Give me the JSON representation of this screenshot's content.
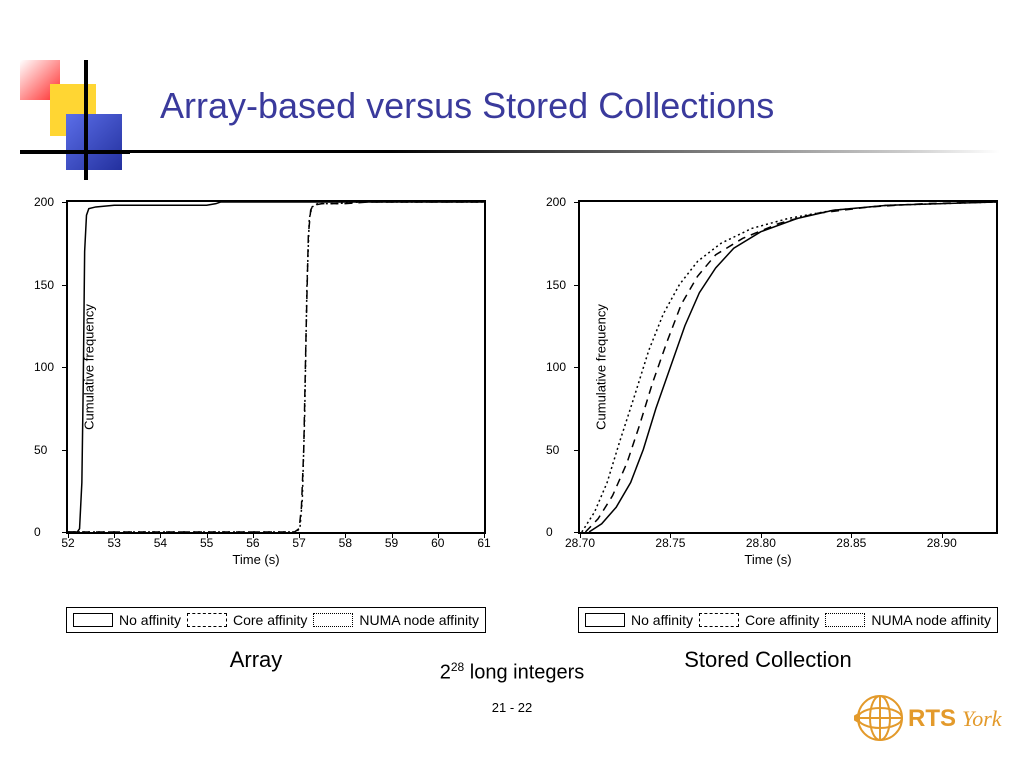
{
  "title": "Array-based versus Stored Collections",
  "title_color": "#3a3a9c",
  "title_fontsize": 36,
  "background_color": "#ffffff",
  "corner_deco": {
    "red": "#ff3b3b",
    "yellow": "#ffd633",
    "blue": "#2e3fbf"
  },
  "left_chart": {
    "type": "line",
    "caption": "Array",
    "xlabel": "Time (s)",
    "ylabel": "Cumulative frequency",
    "label_fontsize": 13,
    "xlim": [
      52,
      61
    ],
    "ylim": [
      0,
      200
    ],
    "xticks": [
      52,
      53,
      54,
      55,
      56,
      57,
      58,
      59,
      60,
      61
    ],
    "yticks": [
      0,
      50,
      100,
      150,
      200
    ],
    "line_color": "#000000",
    "line_width": 1.5,
    "series": {
      "no_affinity": {
        "dash": "none",
        "points": [
          [
            52.0,
            0
          ],
          [
            52.2,
            0
          ],
          [
            52.25,
            2
          ],
          [
            52.3,
            30
          ],
          [
            52.33,
            90
          ],
          [
            52.36,
            170
          ],
          [
            52.4,
            192
          ],
          [
            52.45,
            196
          ],
          [
            52.6,
            197
          ],
          [
            53.0,
            198
          ],
          [
            53.5,
            198
          ],
          [
            54.5,
            198
          ],
          [
            55.0,
            198
          ],
          [
            55.2,
            199
          ],
          [
            55.3,
            200
          ],
          [
            56.0,
            200
          ],
          [
            57.0,
            200
          ],
          [
            58.0,
            200
          ],
          [
            61.0,
            200
          ]
        ]
      },
      "core_affinity": {
        "dash": "8 6",
        "points": [
          [
            52.0,
            0
          ],
          [
            56.8,
            0
          ],
          [
            56.9,
            0
          ],
          [
            57.0,
            2
          ],
          [
            57.05,
            15
          ],
          [
            57.1,
            50
          ],
          [
            57.15,
            120
          ],
          [
            57.2,
            180
          ],
          [
            57.25,
            195
          ],
          [
            57.3,
            198
          ],
          [
            57.5,
            199
          ],
          [
            58.0,
            199
          ],
          [
            58.5,
            200
          ],
          [
            61.0,
            200
          ]
        ]
      },
      "numa_affinity": {
        "dash": "2 3",
        "points": [
          [
            52.0,
            0
          ],
          [
            56.85,
            0
          ],
          [
            56.95,
            0
          ],
          [
            57.02,
            3
          ],
          [
            57.07,
            20
          ],
          [
            57.12,
            70
          ],
          [
            57.17,
            150
          ],
          [
            57.22,
            190
          ],
          [
            57.28,
            197
          ],
          [
            57.4,
            199
          ],
          [
            57.8,
            199
          ],
          [
            58.3,
            200
          ],
          [
            61.0,
            200
          ]
        ]
      }
    }
  },
  "right_chart": {
    "type": "line",
    "caption": "Stored Collection",
    "xlabel": "Time (s)",
    "ylabel": "Cumulative frequency",
    "label_fontsize": 13,
    "xlim": [
      28.7,
      28.93
    ],
    "ylim": [
      0,
      200
    ],
    "xticks": [
      28.7,
      28.75,
      28.8,
      28.85,
      28.9
    ],
    "yticks": [
      0,
      50,
      100,
      150,
      200
    ],
    "line_color": "#000000",
    "line_width": 1.5,
    "series": {
      "no_affinity": {
        "dash": "none",
        "points": [
          [
            28.705,
            0
          ],
          [
            28.712,
            5
          ],
          [
            28.72,
            15
          ],
          [
            28.728,
            30
          ],
          [
            28.735,
            50
          ],
          [
            28.742,
            75
          ],
          [
            28.75,
            100
          ],
          [
            28.758,
            125
          ],
          [
            28.766,
            145
          ],
          [
            28.775,
            160
          ],
          [
            28.785,
            172
          ],
          [
            28.8,
            182
          ],
          [
            28.82,
            190
          ],
          [
            28.84,
            195
          ],
          [
            28.87,
            198
          ],
          [
            28.9,
            199
          ],
          [
            28.93,
            200
          ]
        ]
      },
      "core_affinity": {
        "dash": "8 6",
        "points": [
          [
            28.703,
            0
          ],
          [
            28.71,
            8
          ],
          [
            28.718,
            22
          ],
          [
            28.726,
            42
          ],
          [
            28.733,
            65
          ],
          [
            28.74,
            90
          ],
          [
            28.748,
            115
          ],
          [
            28.756,
            138
          ],
          [
            28.765,
            155
          ],
          [
            28.775,
            168
          ],
          [
            28.79,
            178
          ],
          [
            28.81,
            187
          ],
          [
            28.83,
            193
          ],
          [
            28.86,
            197
          ],
          [
            28.89,
            199
          ],
          [
            28.93,
            200
          ]
        ]
      },
      "numa_affinity": {
        "dash": "2 3",
        "points": [
          [
            28.701,
            0
          ],
          [
            28.708,
            12
          ],
          [
            28.715,
            30
          ],
          [
            28.722,
            55
          ],
          [
            28.73,
            82
          ],
          [
            28.738,
            110
          ],
          [
            28.746,
            132
          ],
          [
            28.755,
            150
          ],
          [
            28.765,
            164
          ],
          [
            28.778,
            175
          ],
          [
            28.795,
            184
          ],
          [
            28.815,
            190
          ],
          [
            28.84,
            195
          ],
          [
            28.87,
            198
          ],
          [
            28.9,
            199
          ],
          [
            28.93,
            200
          ]
        ]
      }
    }
  },
  "legend": {
    "items": [
      {
        "label": "No affinity",
        "dash": "none"
      },
      {
        "label": "Core affinity",
        "dash": "dashed"
      },
      {
        "label": "NUMA node affinity",
        "dash": "dotted"
      }
    ]
  },
  "footnote_prefix_base": "2",
  "footnote_exponent": "28",
  "footnote_suffix": " long integers",
  "page_number": "21 - 22",
  "logo": {
    "text_main": "RTS",
    "text_script": "York",
    "globe_color": "#e39a2b",
    "text_color": "#e39a2b"
  }
}
